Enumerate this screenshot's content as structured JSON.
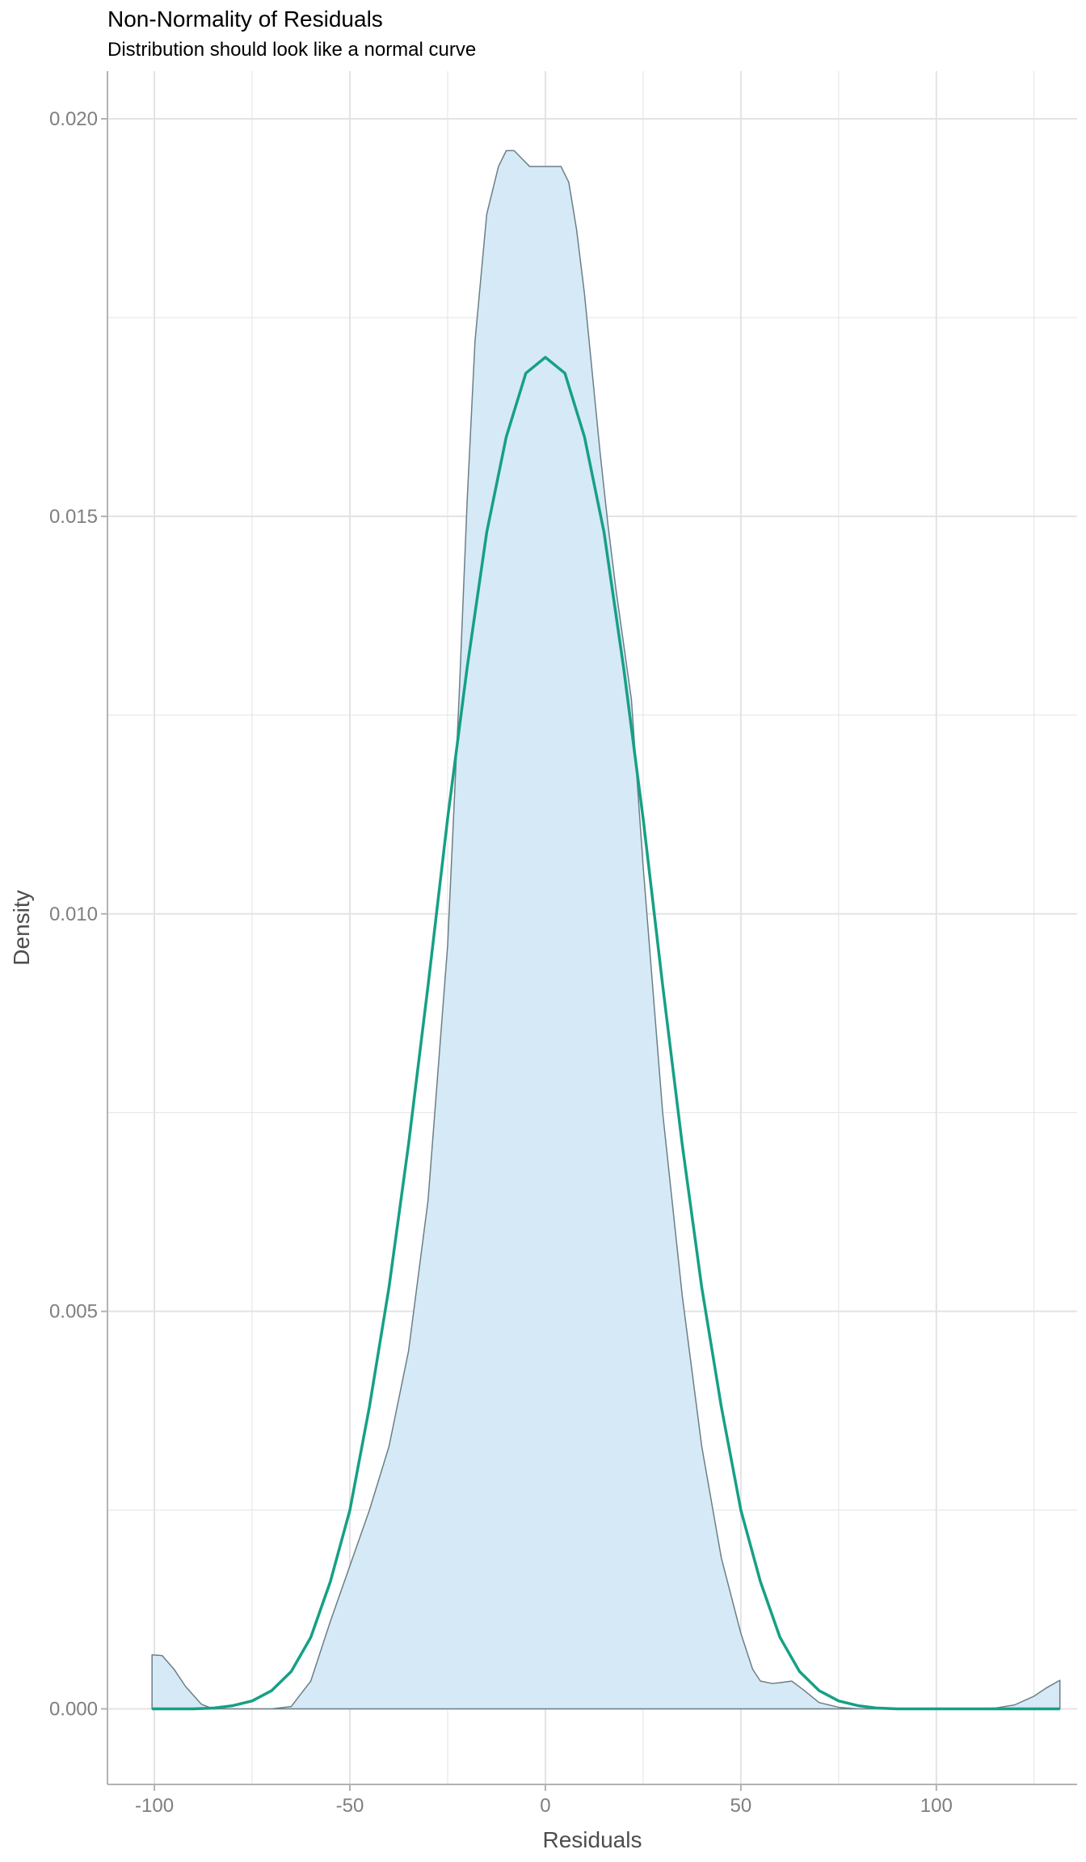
{
  "chart_data": {
    "type": "area",
    "title": "Non-Normality of Residuals",
    "subtitle": "Distribution should look like a normal curve",
    "xlabel": "Residuals",
    "ylabel": "Density",
    "xlim": [
      -112,
      136
    ],
    "ylim": [
      -0.00095,
      0.0206
    ],
    "x_ticks": [
      -100,
      -50,
      0,
      50,
      100
    ],
    "x_tick_labels": [
      "-100",
      "-50",
      "0",
      "50",
      "100"
    ],
    "y_ticks": [
      0.0,
      0.005,
      0.01,
      0.015,
      0.02
    ],
    "y_tick_labels": [
      "0.000",
      "0.005",
      "0.010",
      "0.015",
      "0.020"
    ],
    "grid": true,
    "colors": {
      "density_fill": "#d6e9f7",
      "density_line": "#6b7f86",
      "normal_line": "#16a085",
      "grid": "#e3e3e3"
    },
    "series": [
      {
        "kind": "density-area",
        "x": [
          -100.6,
          -98,
          -95,
          -92,
          -88,
          -85,
          -80,
          -75,
          -70,
          -65,
          -60,
          -55,
          -50,
          -45,
          -40,
          -35,
          -30,
          -25,
          -22,
          -20,
          -18,
          -15,
          -12,
          -10,
          -8,
          -6,
          -4,
          -2,
          0,
          2,
          4,
          6,
          8,
          10,
          12,
          14,
          16,
          18,
          20,
          22,
          25,
          30,
          35,
          40,
          45,
          50,
          53,
          55,
          58,
          60,
          63,
          66,
          70,
          75,
          80,
          90,
          100,
          110,
          115,
          120,
          125,
          128,
          131.6
        ],
        "y": [
          0.00068,
          0.00067,
          0.0005,
          0.00028,
          6e-05,
          0.0,
          0.0,
          0.0,
          0.0,
          3e-05,
          0.00035,
          0.0011,
          0.0018,
          0.0025,
          0.0033,
          0.0045,
          0.0064,
          0.0096,
          0.0128,
          0.0152,
          0.0172,
          0.0188,
          0.0194,
          0.0196,
          0.0196,
          0.0195,
          0.0194,
          0.0194,
          0.0194,
          0.0194,
          0.0194,
          0.0192,
          0.0186,
          0.0178,
          0.0168,
          0.0158,
          0.0149,
          0.0141,
          0.0134,
          0.0127,
          0.0106,
          0.0075,
          0.0052,
          0.0033,
          0.0019,
          0.00095,
          0.0005,
          0.00035,
          0.00032,
          0.00033,
          0.00035,
          0.00024,
          8e-05,
          2e-05,
          0.0,
          0.0,
          0.0,
          0.0,
          1e-05,
          5e-05,
          0.00016,
          0.00026,
          0.00036
        ]
      },
      {
        "kind": "normal-curve",
        "x": [
          -100.6,
          -95,
          -90,
          -85,
          -80,
          -75,
          -70,
          -65,
          -60,
          -55,
          -50,
          -45,
          -40,
          -35,
          -30,
          -25,
          -20,
          -15,
          -10,
          -5,
          0,
          5,
          10,
          15,
          20,
          25,
          30,
          35,
          40,
          45,
          50,
          55,
          60,
          65,
          70,
          75,
          80,
          85,
          90,
          100,
          110,
          120,
          131.6
        ],
        "y": [
          0.0,
          0.0,
          0.0,
          1e-05,
          4e-05,
          0.0001,
          0.00023,
          0.00047,
          0.0009,
          0.0016,
          0.0025,
          0.0038,
          0.0053,
          0.0071,
          0.0091,
          0.0112,
          0.0131,
          0.0148,
          0.016,
          0.0168,
          0.017,
          0.0168,
          0.016,
          0.0148,
          0.0131,
          0.0112,
          0.0091,
          0.0071,
          0.0053,
          0.0038,
          0.0025,
          0.0016,
          0.0009,
          0.00047,
          0.00023,
          0.0001,
          4e-05,
          1e-05,
          0.0,
          0.0,
          0.0,
          0.0,
          0.0
        ]
      }
    ]
  }
}
